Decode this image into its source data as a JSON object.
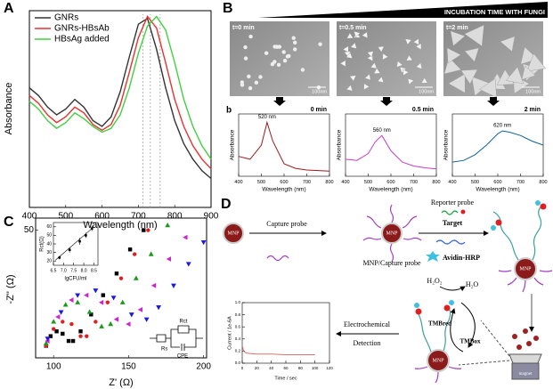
{
  "panel_labels": [
    "A",
    "B",
    "b",
    "C",
    "D"
  ],
  "sem": {
    "header": "INCUBATION TIME WITH FUNGI",
    "frames": [
      {
        "label": "t=0 min",
        "scale": "100nm"
      },
      {
        "label": "t=0.5 min",
        "scale": "100nm"
      },
      {
        "label": "t=2 min",
        "scale": "100nm"
      }
    ]
  },
  "circuit": {
    "labels": [
      "Rs",
      "Rct",
      "CPE"
    ]
  },
  "diagram": {
    "mnp": "MNP",
    "capture_probe": "Capture probe",
    "mnp_capture": "MNP/Capture probe",
    "reporter_probe": "Reporter probe",
    "target": "Target",
    "avidin": "Avidin-HRP",
    "h2o2": "H₂O₂",
    "h2o": "H₂O",
    "tmbred": "TMBred",
    "tmbox": "TMBox",
    "electro": "Electrochemical",
    "detection": "Detection",
    "magnet": "magnet"
  },
  "chart_data": [
    {
      "type": "line",
      "x": [
        400,
        425,
        450,
        475,
        500,
        525,
        550,
        575,
        600,
        625,
        650,
        675,
        700,
        725,
        750,
        775,
        800,
        825,
        850,
        875,
        900
      ],
      "series": [
        {
          "name": "GNRs",
          "color": "#333333",
          "values": [
            0.62,
            0.58,
            0.52,
            0.48,
            0.51,
            0.56,
            0.52,
            0.45,
            0.42,
            0.47,
            0.6,
            0.78,
            0.95,
            0.98,
            0.82,
            0.62,
            0.45,
            0.33,
            0.25,
            0.19,
            0.15
          ]
        },
        {
          "name": "GNRs-HBsAb",
          "color": "#e8312f",
          "values": [
            0.58,
            0.54,
            0.48,
            0.44,
            0.47,
            0.52,
            0.49,
            0.43,
            0.4,
            0.43,
            0.53,
            0.7,
            0.88,
            0.99,
            0.93,
            0.75,
            0.56,
            0.42,
            0.32,
            0.25,
            0.2
          ]
        },
        {
          "name": "HBsAg added",
          "color": "#3fd13f",
          "values": [
            0.55,
            0.51,
            0.45,
            0.41,
            0.44,
            0.49,
            0.46,
            0.42,
            0.39,
            0.41,
            0.48,
            0.62,
            0.8,
            0.94,
            0.99,
            0.92,
            0.75,
            0.56,
            0.42,
            0.32,
            0.25
          ]
        }
      ],
      "xlim": [
        400,
        900
      ],
      "xticks": [
        400,
        500,
        600,
        700,
        800,
        900
      ],
      "ylim": [
        0,
        1.02
      ],
      "x_label": "Wavelength (nm)",
      "y_label": "Absorbance",
      "legend": "upper left",
      "peak_lines": [
        712,
        733,
        760
      ]
    },
    {
      "type": "line",
      "x": [
        400,
        450,
        500,
        525,
        550,
        600,
        650,
        700,
        750,
        800
      ],
      "series": [
        {
          "color": "#9c1a1a",
          "values": [
            0.35,
            0.3,
            0.55,
            0.95,
            0.62,
            0.22,
            0.14,
            0.11,
            0.1,
            0.09
          ]
        }
      ],
      "annotations": [
        "520 nm",
        "0 min"
      ],
      "xlim": [
        400,
        800
      ],
      "xticks": [
        400,
        500,
        600,
        700,
        800
      ],
      "ylim": [
        0,
        1.1
      ],
      "x_label": "Wavelength (nm)",
      "y_label": "Absorbance"
    },
    {
      "type": "line",
      "x": [
        400,
        450,
        500,
        530,
        560,
        600,
        650,
        700,
        750,
        800
      ],
      "series": [
        {
          "color": "#c23fc2",
          "values": [
            0.3,
            0.28,
            0.4,
            0.6,
            0.72,
            0.45,
            0.25,
            0.18,
            0.15,
            0.13
          ]
        }
      ],
      "annotations": [
        "560 nm",
        "0.5 min"
      ],
      "xlim": [
        400,
        800
      ],
      "xticks": [
        400,
        500,
        600,
        700,
        800
      ],
      "ylim": [
        0,
        1.1
      ],
      "x_label": "Wavelength (nm)",
      "y_label": "Absorbance"
    },
    {
      "type": "line",
      "x": [
        400,
        450,
        500,
        550,
        600,
        620,
        650,
        700,
        750,
        800
      ],
      "series": [
        {
          "color": "#10609e",
          "values": [
            0.25,
            0.28,
            0.38,
            0.55,
            0.75,
            0.8,
            0.78,
            0.72,
            0.62,
            0.55
          ]
        }
      ],
      "annotations": [
        "620 nm",
        "2 min"
      ],
      "xlim": [
        400,
        800
      ],
      "xticks": [
        400,
        500,
        600,
        700,
        800
      ],
      "ylim": [
        0,
        1.1
      ],
      "x_label": "Wavelength (nm)",
      "y_label": "Absorbance"
    },
    {
      "type": "scatter",
      "series": [
        {
          "color": "#000000",
          "marker": "square",
          "x": [
            95,
            98,
            102,
            106,
            110,
            113,
            118,
            125,
            133,
            142,
            151,
            160
          ],
          "values": [
            2,
            6,
            8,
            7,
            4,
            4,
            8,
            15,
            23,
            32,
            42,
            50
          ]
        },
        {
          "color": "#e02020",
          "marker": "circle",
          "x": [
            95,
            100,
            106,
            112,
            118,
            122,
            128,
            136,
            145,
            154,
            163
          ],
          "values": [
            2,
            9,
            12,
            11,
            6,
            6,
            12,
            20,
            30,
            40,
            50
          ]
        },
        {
          "color": "#1a9a1a",
          "marker": "triangle-up",
          "x": [
            95,
            100,
            108,
            116,
            124,
            132,
            138,
            146,
            155,
            165,
            176
          ],
          "values": [
            3,
            12,
            19,
            20,
            16,
            10,
            11,
            20,
            30,
            40,
            52
          ]
        },
        {
          "color": "#d020d0",
          "marker": "triangle-left",
          "x": [
            96,
            103,
            112,
            122,
            132,
            142,
            150,
            158,
            167,
            177,
            188
          ],
          "values": [
            4,
            14,
            21,
            23,
            20,
            13,
            11,
            17,
            27,
            38,
            47
          ]
        },
        {
          "color": "#1a1ae0",
          "marker": "triangle-down",
          "x": [
            96,
            105,
            116,
            128,
            140,
            152,
            162,
            170,
            180,
            190,
            200
          ],
          "values": [
            5,
            16,
            23,
            25,
            22,
            15,
            13,
            18,
            27,
            36,
            45
          ]
        }
      ],
      "xlim": [
        88,
        202
      ],
      "xticks": [
        100,
        150,
        200
      ],
      "ylim": [
        -3,
        55
      ],
      "yticks": [
        50
      ],
      "x_label": "Z' (Ω)",
      "y_label": "-Z'' (Ω)"
    },
    {
      "type": "scatter",
      "series": [
        {
          "color": "#000000",
          "marker": "square",
          "x": [
            6.8,
            7.3,
            7.8,
            8.1,
            8.4
          ],
          "values": [
            24,
            33,
            43,
            50,
            58
          ],
          "errors": [
            2,
            3,
            4,
            3,
            3
          ]
        }
      ],
      "fit": {
        "x": [
          6.6,
          8.5
        ],
        "y": [
          21,
          60
        ]
      },
      "xlim": [
        6.5,
        8.7
      ],
      "xticks": [
        6.5,
        {
          "value": 7,
          "label": "7.0"
        },
        7.5,
        {
          "value": 8,
          "label": "8.0"
        },
        8.5
      ],
      "ylim": [
        15,
        65
      ],
      "yticks": [
        20,
        30,
        40,
        50,
        60
      ],
      "x_label": "lgCFU/ml",
      "y_label": "Rct(Ω)"
    },
    {
      "type": "line",
      "x": [
        0,
        2,
        5,
        10,
        20,
        40,
        60,
        80,
        100
      ],
      "series": [
        {
          "color": "#e07070",
          "values": [
            0.3,
            0.2,
            0.17,
            0.16,
            0.15,
            0.15,
            0.14,
            0.14,
            0.14
          ]
        }
      ],
      "xlim": [
        0,
        120
      ],
      "xticks": [
        0,
        20,
        40,
        60,
        80,
        100,
        120
      ],
      "ylim": [
        0,
        1
      ],
      "yticks": [
        {
          "value": 0,
          "label": "0.0"
        },
        {
          "value": 0.2,
          "label": "0.2"
        },
        {
          "value": 0.4,
          "label": "0.4"
        },
        {
          "value": 0.6,
          "label": "0.6"
        },
        {
          "value": 0.8,
          "label": "0.8"
        },
        {
          "value": 1,
          "label": "1.0"
        }
      ],
      "x_label": "Time / sec",
      "y_label": "Current / 1e-6A"
    }
  ]
}
